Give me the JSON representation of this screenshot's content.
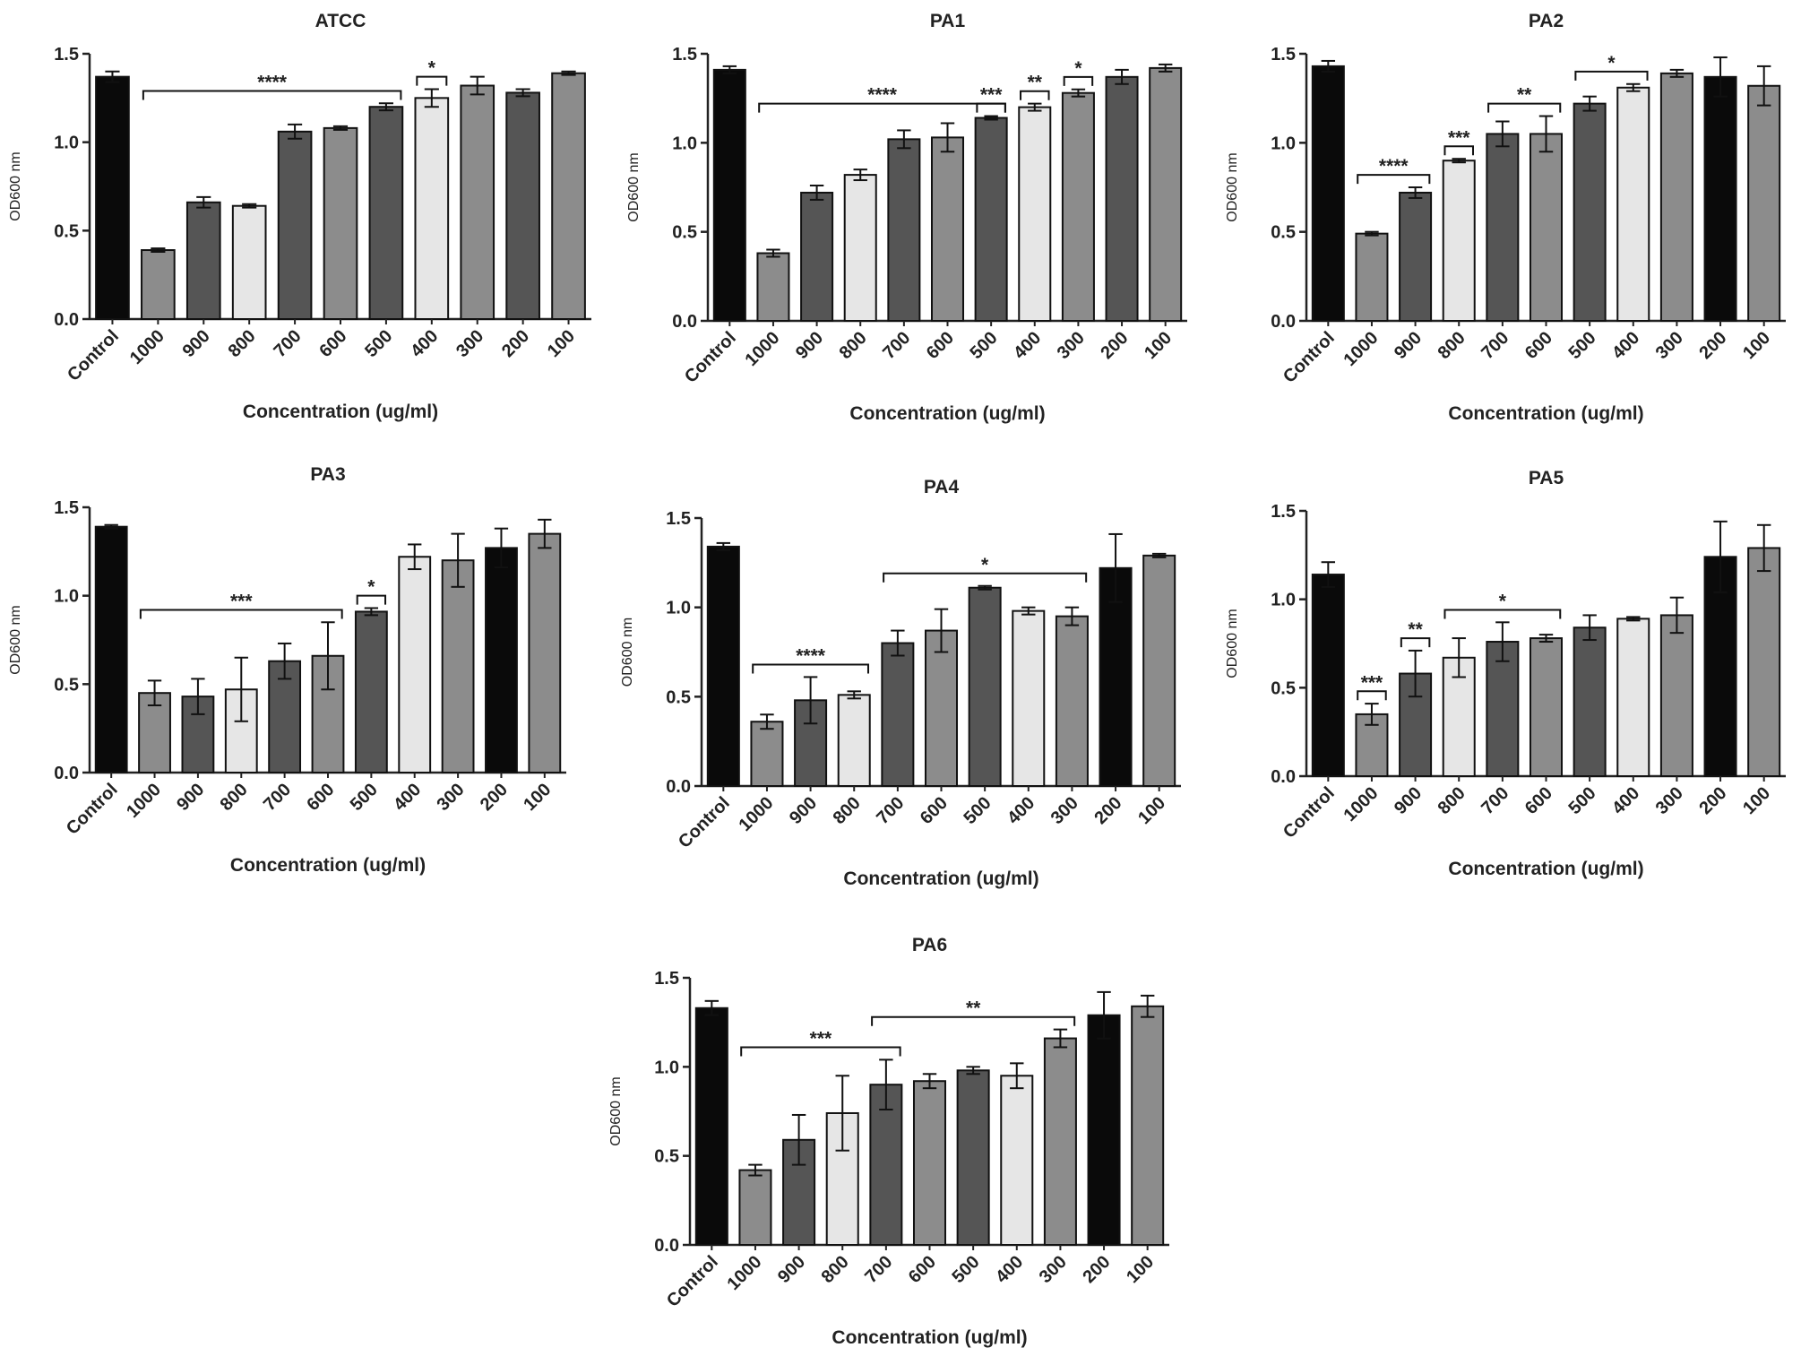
{
  "colors": {
    "black": "#0a0a0a",
    "dark": "#555555",
    "mid": "#8c8c8c",
    "light": "#e6e6e6",
    "axis": "#222222"
  },
  "chart_data": [
    {
      "type": "bar",
      "title": "ATCC",
      "xlabel": "Concentration (ug/ml)",
      "ylabel": "OD600 nm",
      "ylim": [
        0,
        1.5
      ],
      "yticks": [
        "0.0",
        "0.5",
        "1.0",
        "1.5"
      ],
      "categories": [
        "Control",
        "1000",
        "900",
        "800",
        "700",
        "600",
        "500",
        "400",
        "300",
        "200",
        "100"
      ],
      "values": [
        1.37,
        0.39,
        0.66,
        0.64,
        1.06,
        1.08,
        1.2,
        1.25,
        1.32,
        1.28,
        1.39
      ],
      "errors": [
        0.03,
        0.01,
        0.03,
        0.01,
        0.04,
        0.01,
        0.02,
        0.05,
        0.05,
        0.02,
        0.01
      ],
      "colors": [
        "black",
        "mid",
        "dark",
        "light",
        "dark",
        "mid",
        "dark",
        "light",
        "mid",
        "dark",
        "mid"
      ],
      "significance": [
        {
          "from": 1,
          "to": 6,
          "label": "****"
        },
        {
          "from": 7,
          "to": 7,
          "label": "*"
        }
      ]
    },
    {
      "type": "bar",
      "title": "PA1",
      "xlabel": "Concentration (ug/ml)",
      "ylabel": "OD600 nm",
      "ylim": [
        0,
        1.5
      ],
      "yticks": [
        "0.0",
        "0.5",
        "1.0",
        "1.5"
      ],
      "categories": [
        "Control",
        "1000",
        "900",
        "800",
        "700",
        "600",
        "500",
        "400",
        "300",
        "200",
        "100"
      ],
      "values": [
        1.41,
        0.38,
        0.72,
        0.82,
        1.02,
        1.03,
        1.14,
        1.2,
        1.28,
        1.37,
        1.42
      ],
      "errors": [
        0.02,
        0.02,
        0.04,
        0.03,
        0.05,
        0.08,
        0.01,
        0.02,
        0.02,
        0.04,
        0.02
      ],
      "colors": [
        "black",
        "mid",
        "dark",
        "light",
        "dark",
        "mid",
        "dark",
        "light",
        "mid",
        "dark",
        "mid"
      ],
      "significance": [
        {
          "from": 1,
          "to": 6,
          "label": "****"
        },
        {
          "from": 6,
          "to": 6,
          "label": "***"
        },
        {
          "from": 7,
          "to": 7,
          "label": "**"
        },
        {
          "from": 8,
          "to": 8,
          "label": "*"
        }
      ]
    },
    {
      "type": "bar",
      "title": "PA2",
      "xlabel": "Concentration (ug/ml)",
      "ylabel": "OD600 nm",
      "ylim": [
        0,
        1.5
      ],
      "yticks": [
        "0.0",
        "0.5",
        "1.0",
        "1.5"
      ],
      "categories": [
        "Control",
        "1000",
        "900",
        "800",
        "700",
        "600",
        "500",
        "400",
        "300",
        "200",
        "100"
      ],
      "values": [
        1.43,
        0.49,
        0.72,
        0.9,
        1.05,
        1.05,
        1.22,
        1.31,
        1.39,
        1.37,
        1.32
      ],
      "errors": [
        0.03,
        0.01,
        0.03,
        0.01,
        0.07,
        0.1,
        0.04,
        0.02,
        0.02,
        0.11,
        0.11
      ],
      "colors": [
        "black",
        "mid",
        "dark",
        "light",
        "dark",
        "mid",
        "dark",
        "light",
        "mid",
        "black",
        "mid"
      ],
      "significance": [
        {
          "from": 1,
          "to": 2,
          "label": "****"
        },
        {
          "from": 3,
          "to": 3,
          "label": "***"
        },
        {
          "from": 4,
          "to": 5,
          "label": "**"
        },
        {
          "from": 6,
          "to": 7,
          "label": "*"
        }
      ]
    },
    {
      "type": "bar",
      "title": "PA3",
      "xlabel": "Concentration (ug/ml)",
      "ylabel": "OD600 nm",
      "ylim": [
        0,
        1.5
      ],
      "yticks": [
        "0.0",
        "0.5",
        "1.0",
        "1.5"
      ],
      "categories": [
        "Control",
        "1000",
        "900",
        "800",
        "700",
        "600",
        "500",
        "400",
        "300",
        "200",
        "100"
      ],
      "values": [
        1.39,
        0.45,
        0.43,
        0.47,
        0.63,
        0.66,
        0.91,
        1.22,
        1.2,
        1.27,
        1.35
      ],
      "errors": [
        0.01,
        0.07,
        0.1,
        0.18,
        0.1,
        0.19,
        0.02,
        0.07,
        0.15,
        0.11,
        0.08
      ],
      "colors": [
        "black",
        "mid",
        "dark",
        "light",
        "dark",
        "mid",
        "dark",
        "light",
        "mid",
        "black",
        "mid"
      ],
      "significance": [
        {
          "from": 1,
          "to": 5,
          "label": "***"
        },
        {
          "from": 6,
          "to": 6,
          "label": "*"
        }
      ]
    },
    {
      "type": "bar",
      "title": "PA4",
      "xlabel": "Concentration (ug/ml)",
      "ylabel": "OD600 nm",
      "ylim": [
        0,
        1.5
      ],
      "yticks": [
        "0.0",
        "0.5",
        "1.0",
        "1.5"
      ],
      "categories": [
        "Control",
        "1000",
        "900",
        "800",
        "700",
        "600",
        "500",
        "400",
        "300",
        "200",
        "100"
      ],
      "values": [
        1.34,
        0.36,
        0.48,
        0.51,
        0.8,
        0.87,
        1.11,
        0.98,
        0.95,
        1.22,
        1.29
      ],
      "errors": [
        0.02,
        0.04,
        0.13,
        0.02,
        0.07,
        0.12,
        0.01,
        0.02,
        0.05,
        0.19,
        0.01
      ],
      "colors": [
        "black",
        "mid",
        "dark",
        "light",
        "dark",
        "mid",
        "dark",
        "light",
        "mid",
        "black",
        "mid"
      ],
      "significance": [
        {
          "from": 1,
          "to": 3,
          "label": "****"
        },
        {
          "from": 4,
          "to": 8,
          "label": "*"
        }
      ]
    },
    {
      "type": "bar",
      "title": "PA5",
      "xlabel": "Concentration (ug/ml)",
      "ylabel": "OD600 nm",
      "ylim": [
        0,
        1.5
      ],
      "yticks": [
        "0.0",
        "0.5",
        "1.0",
        "1.5"
      ],
      "categories": [
        "Control",
        "1000",
        "900",
        "800",
        "700",
        "600",
        "500",
        "400",
        "300",
        "200",
        "100"
      ],
      "values": [
        1.14,
        0.35,
        0.58,
        0.67,
        0.76,
        0.78,
        0.84,
        0.89,
        0.91,
        1.24,
        1.29
      ],
      "errors": [
        0.07,
        0.06,
        0.13,
        0.11,
        0.11,
        0.02,
        0.07,
        0.01,
        0.1,
        0.2,
        0.13
      ],
      "colors": [
        "black",
        "mid",
        "dark",
        "light",
        "dark",
        "mid",
        "dark",
        "light",
        "mid",
        "black",
        "mid"
      ],
      "significance": [
        {
          "from": 1,
          "to": 1,
          "label": "***"
        },
        {
          "from": 2,
          "to": 2,
          "label": "**"
        },
        {
          "from": 3,
          "to": 5,
          "label": "*"
        }
      ]
    },
    {
      "type": "bar",
      "title": "PA6",
      "xlabel": "Concentration (ug/ml)",
      "ylabel": "OD600 nm",
      "ylim": [
        0,
        1.5
      ],
      "yticks": [
        "0.0",
        "0.5",
        "1.0",
        "1.5"
      ],
      "categories": [
        "Control",
        "1000",
        "900",
        "800",
        "700",
        "600",
        "500",
        "400",
        "300",
        "200",
        "100"
      ],
      "values": [
        1.33,
        0.42,
        0.59,
        0.74,
        0.9,
        0.92,
        0.98,
        0.95,
        1.16,
        1.29,
        1.34
      ],
      "errors": [
        0.04,
        0.03,
        0.14,
        0.21,
        0.14,
        0.04,
        0.02,
        0.07,
        0.05,
        0.13,
        0.06
      ],
      "colors": [
        "black",
        "mid",
        "dark",
        "light",
        "dark",
        "mid",
        "dark",
        "light",
        "mid",
        "black",
        "mid"
      ],
      "significance": [
        {
          "from": 1,
          "to": 4,
          "label": "***"
        },
        {
          "from": 4,
          "to": 8,
          "label": "**"
        }
      ]
    }
  ]
}
